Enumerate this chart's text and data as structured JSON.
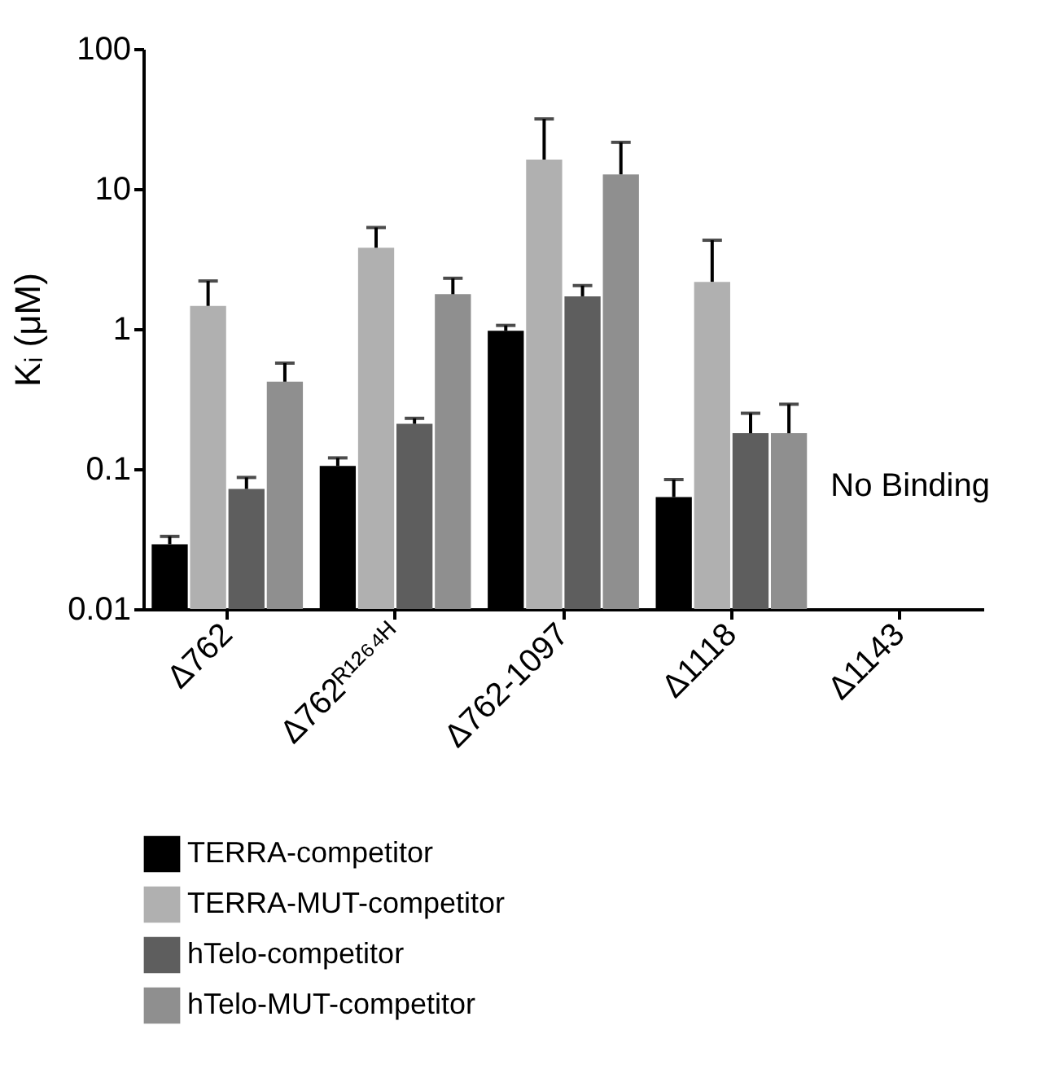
{
  "chart_data": {
    "type": "bar",
    "ylabel": "Kᵢ (μM)",
    "log": true,
    "ylim": [
      0.01,
      100
    ],
    "yticks": [
      0.01,
      0.1,
      1,
      10,
      100
    ],
    "grid": false,
    "legend": "bottom",
    "categories": [
      "Δ762",
      "Δ762ᴿ¹²⁶⁴ᴴ",
      "Δ762-1097",
      "Δ1118",
      "Δ1143"
    ],
    "series": [
      {
        "name": "TERRA-competitor",
        "color": "#000000",
        "values": [
          0.029,
          0.105,
          0.97,
          0.063,
          null
        ],
        "errors": [
          [
            0.029,
            0.033
          ],
          [
            0.105,
            0.12
          ],
          [
            0.97,
            1.06
          ],
          [
            0.063,
            0.084
          ],
          null
        ]
      },
      {
        "name": "TERRA-MUT-competitor",
        "color": "#b0b0b0",
        "values": [
          1.46,
          3.8,
          16.2,
          2.17,
          null
        ],
        "errors": [
          [
            1.46,
            2.2
          ],
          [
            3.8,
            5.3
          ],
          [
            16.2,
            31.6
          ],
          [
            2.17,
            4.3
          ],
          null
        ]
      },
      {
        "name": "hTelo-competitor",
        "color": "#5e5e5e",
        "values": [
          0.072,
          0.21,
          1.71,
          0.18,
          null
        ],
        "errors": [
          [
            0.072,
            0.087
          ],
          [
            0.21,
            0.23
          ],
          [
            1.71,
            2.04
          ],
          [
            0.18,
            0.25
          ],
          null
        ]
      },
      {
        "name": "hTelo-MUT-competitor",
        "color": "#8f8f8f",
        "values": [
          0.42,
          1.77,
          12.7,
          0.18,
          null
        ],
        "errors": [
          [
            0.42,
            0.57
          ],
          [
            1.77,
            2.3
          ],
          [
            12.7,
            21.5
          ],
          [
            0.18,
            0.29
          ],
          null
        ]
      }
    ],
    "annotations": [
      "No Binding"
    ]
  }
}
